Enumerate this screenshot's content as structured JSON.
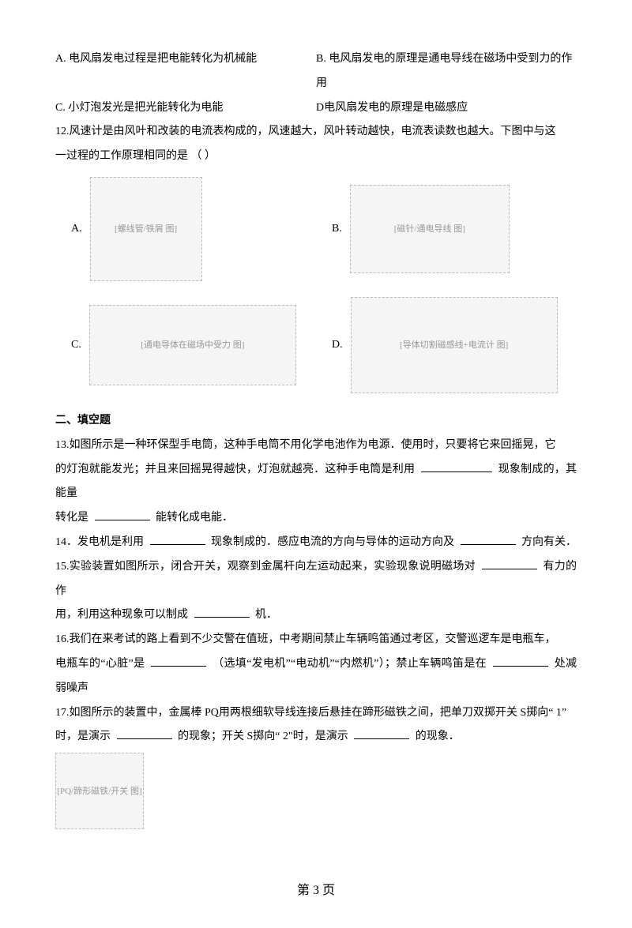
{
  "q11_options": {
    "a": "A. 电风扇发电过程是把电能转化为机械能",
    "b": "B. 电风扇发电的原理是通电导线在磁场中受到力的作用",
    "c": "C. 小灯泡发光是把光能转化为电能",
    "d": "D电风扇发电的原理是电磁感应"
  },
  "q12": {
    "stem1": "12.风速计是由风叶和改装的电流表构成的，风速越大，风叶转动越快，电流表读数也越大。下图中与这",
    "stem2": "一过程的工作原理相同的是 （   ）",
    "labels": {
      "a": "A.",
      "b": "B.",
      "c": "C.",
      "d": "D."
    },
    "diagram_placeholder": {
      "a": "[螺线管/铁屑 图]",
      "b": "[磁针/通电导线 图]",
      "c": "[通电导体在磁场中受力 图]",
      "d": "[导体切割磁感线+电流计 图]"
    }
  },
  "section2": "二、填空题",
  "q13": {
    "l1": "13.如图所示是一种环保型手电筒，这种手电筒不用化学电池作为电源．使用时，只要将它来回摇晃，它",
    "l2a": "的灯泡就能发光；并且来回摇晃得越快，灯泡就越亮．这种手电筒是利用",
    "l2b": "现象制成的，其能量",
    "l3a": "转化是",
    "l3b": "能转化成电能．"
  },
  "q14": {
    "a": "14．发电机是利用",
    "b": "现象制成的．感应电流的方向与导体的运动方向及",
    "c": "方向有关．"
  },
  "q15": {
    "a": "15.实验装置如图所示，闭合开关，观察到金属杆向左运动起来，实验现象说明磁场对",
    "b": "有力的作",
    "c": "用，利用这种现象可以制成",
    "d": "机．"
  },
  "q16": {
    "l1": "16.我们在来考试的路上看到不少交警在值班，中考期间禁止车辆鸣笛通过考区，交警巡逻车是电瓶车，",
    "l2a": "电瓶车的“心脏”是",
    "l2b": "（选填“发电机”“电动机”“内燃机”）；禁止车辆鸣笛是在",
    "l2c": "处减弱噪声"
  },
  "q17": {
    "l1a": "17.如图所示的装置中，金属棒",
    "l1b": "PQ用两根细软导线连接后悬挂在蹄形磁铁之间，把单刀双掷开关",
    "l1c": "S掷向“  1”",
    "l2a": "时，是演示",
    "l2b": "的现象；开关",
    "l2c": "S掷向“  2\"时，是演示",
    "l2d": "的现象．",
    "diagram_placeholder": "[PQ/蹄形磁铁/开关 图]"
  },
  "footer": "第 3 页"
}
